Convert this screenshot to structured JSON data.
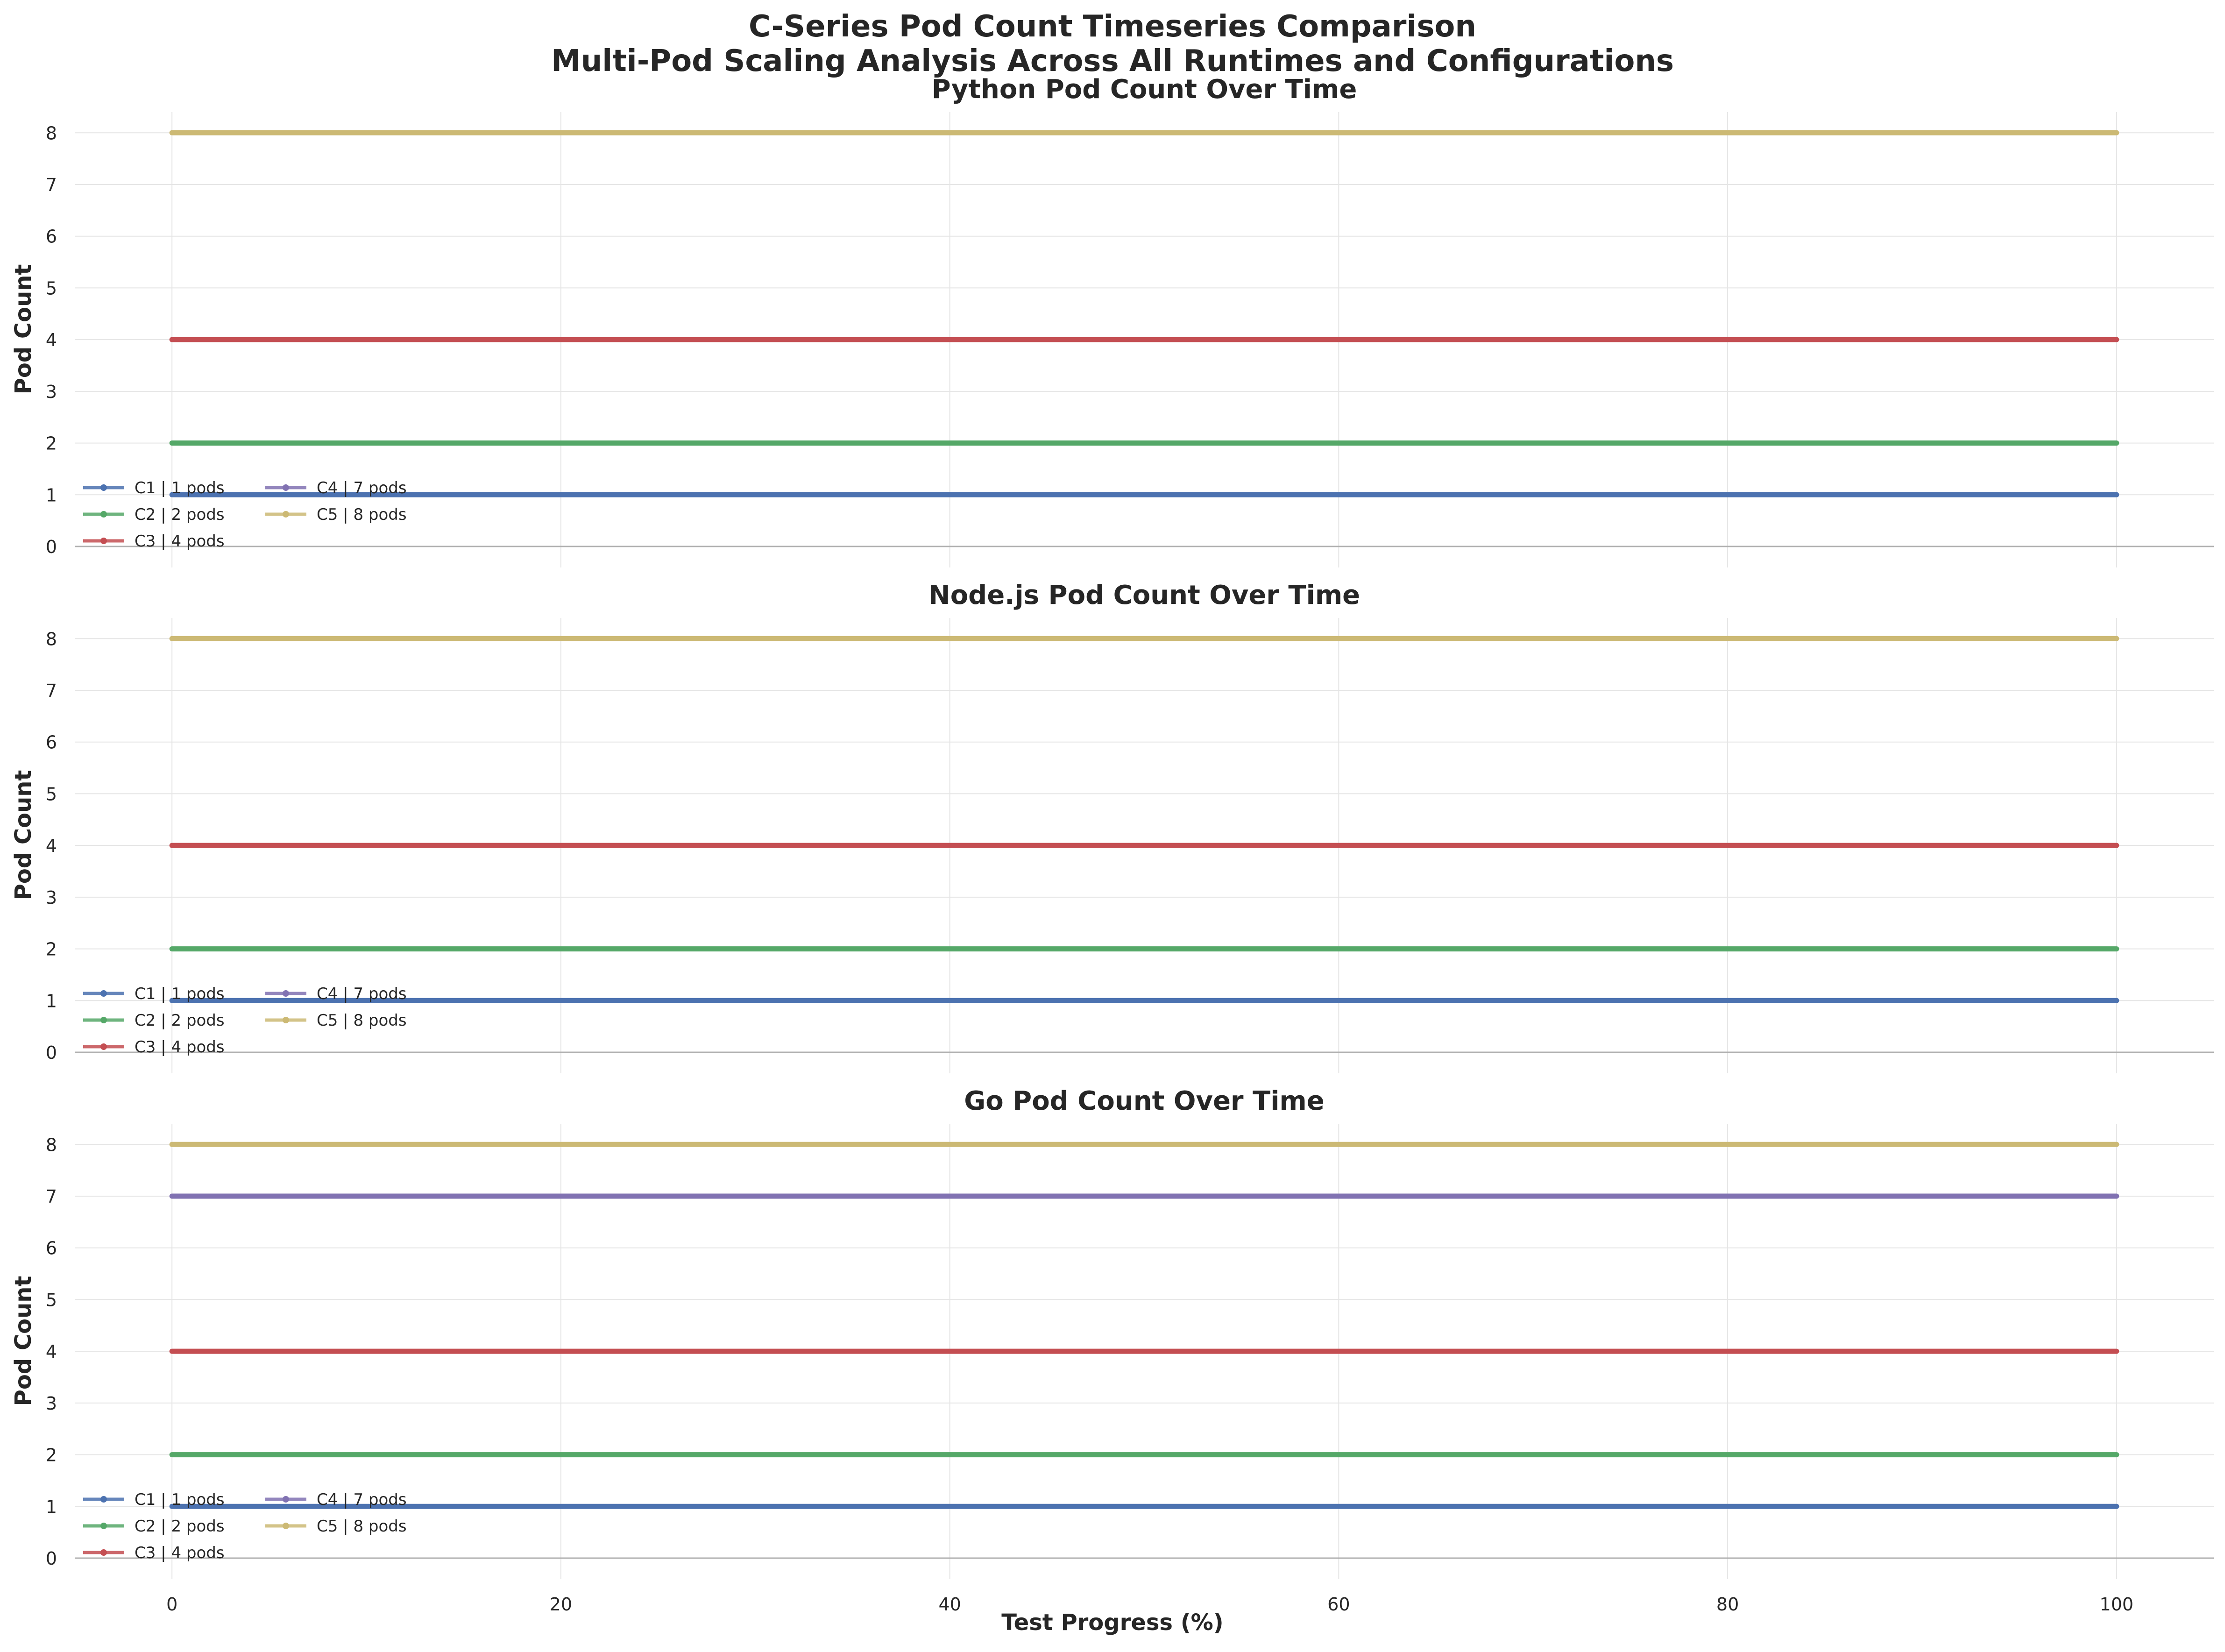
{
  "figure": {
    "title_line1": "C-Series Pod Count Timeseries Comparison",
    "title_line2": "Multi-Pod Scaling Analysis Across All Runtimes and Configurations",
    "xlabel": "Test Progress (%)",
    "ylabel": "Pod Count"
  },
  "colors": {
    "C1": "#4c72b0",
    "C2": "#55a868",
    "C3": "#c44e52",
    "C4": "#8172b2",
    "C5": "#ccb974",
    "grid": "#e5e5e5",
    "axis": "#b0b0b0",
    "text": "#262626"
  },
  "chart_data": [
    {
      "type": "line",
      "title": "Python Pod Count Over Time",
      "xlabel": "",
      "ylabel": "Pod Count",
      "xlim": [
        -5,
        105
      ],
      "ylim": [
        0,
        8.4
      ],
      "xticks": [
        0,
        20,
        40,
        60,
        80,
        100
      ],
      "yticks": [
        0,
        1,
        2,
        3,
        4,
        5,
        6,
        7,
        8
      ],
      "grid": true,
      "legend_placement": "lower-left",
      "series": [
        {
          "name": "C1 | 1 pods",
          "x": [
            0,
            100
          ],
          "y": [
            1,
            1
          ]
        },
        {
          "name": "C2 | 2 pods",
          "x": [
            0,
            100
          ],
          "y": [
            2,
            2
          ]
        },
        {
          "name": "C3 | 4 pods",
          "x": [
            0,
            100
          ],
          "y": [
            4,
            4
          ]
        },
        {
          "name": "C4 | 7 pods",
          "x": [],
          "y": []
        },
        {
          "name": "C5 | 8 pods",
          "x": [
            0,
            100
          ],
          "y": [
            8,
            8
          ]
        }
      ]
    },
    {
      "type": "line",
      "title": "Node.js Pod Count Over Time",
      "xlabel": "",
      "ylabel": "Pod Count",
      "xlim": [
        -5,
        105
      ],
      "ylim": [
        0,
        8.4
      ],
      "xticks": [
        0,
        20,
        40,
        60,
        80,
        100
      ],
      "yticks": [
        0,
        1,
        2,
        3,
        4,
        5,
        6,
        7,
        8
      ],
      "grid": true,
      "legend_placement": "lower-left",
      "series": [
        {
          "name": "C1 | 1 pods",
          "x": [
            0,
            100
          ],
          "y": [
            1,
            1
          ]
        },
        {
          "name": "C2 | 2 pods",
          "x": [
            0,
            100
          ],
          "y": [
            2,
            2
          ]
        },
        {
          "name": "C3 | 4 pods",
          "x": [
            0,
            100
          ],
          "y": [
            4,
            4
          ]
        },
        {
          "name": "C4 | 7 pods",
          "x": [],
          "y": []
        },
        {
          "name": "C5 | 8 pods",
          "x": [
            0,
            100
          ],
          "y": [
            8,
            8
          ]
        }
      ]
    },
    {
      "type": "line",
      "title": "Go Pod Count Over Time",
      "xlabel": "Test Progress (%)",
      "ylabel": "Pod Count",
      "xlim": [
        -5,
        105
      ],
      "ylim": [
        0,
        8.4
      ],
      "xticks": [
        0,
        20,
        40,
        60,
        80,
        100
      ],
      "yticks": [
        0,
        1,
        2,
        3,
        4,
        5,
        6,
        7,
        8
      ],
      "grid": true,
      "legend_placement": "lower-left",
      "series": [
        {
          "name": "C1 | 1 pods",
          "x": [
            0,
            100
          ],
          "y": [
            1,
            1
          ]
        },
        {
          "name": "C2 | 2 pods",
          "x": [
            0,
            100
          ],
          "y": [
            2,
            2
          ]
        },
        {
          "name": "C3 | 4 pods",
          "x": [
            0,
            100
          ],
          "y": [
            4,
            4
          ]
        },
        {
          "name": "C4 | 7 pods",
          "x": [
            0,
            100
          ],
          "y": [
            7,
            7
          ]
        },
        {
          "name": "C5 | 8 pods",
          "x": [
            0,
            100
          ],
          "y": [
            8,
            8
          ]
        }
      ]
    }
  ]
}
